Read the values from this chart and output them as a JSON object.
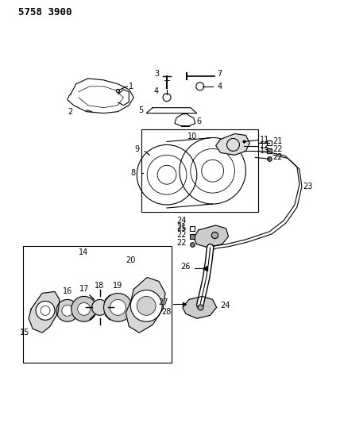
{
  "title": "5758 3900",
  "bg_color": "#ffffff",
  "line_color": "#000000",
  "title_fontsize": 9,
  "label_fontsize": 7,
  "figsize": [
    4.28,
    5.33
  ],
  "dpi": 100
}
